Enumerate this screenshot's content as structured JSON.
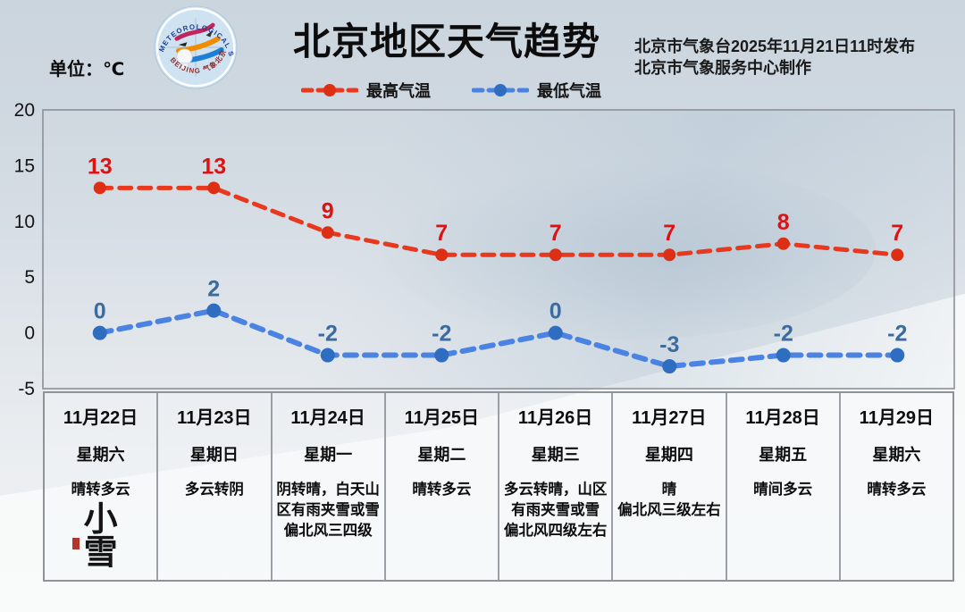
{
  "header": {
    "title": "北京地区天气趋势",
    "issuer_line1": "北京市气象台2025年11月21日11时发布",
    "issuer_line2": "北京市气象服务中心制作",
    "unit_label": "单位：℃",
    "logo": {
      "top_text": "METEOROLOGICAL SERVICE",
      "bottom_text": "BEIJING 气象北京"
    }
  },
  "chart_data": {
    "type": "line",
    "x": [
      "11月22日",
      "11月23日",
      "11月24日",
      "11月25日",
      "11月26日",
      "11月27日",
      "11月28日",
      "11月29日"
    ],
    "series": [
      {
        "name": "最高气温",
        "values": [
          13,
          13,
          9,
          7,
          7,
          7,
          8,
          7
        ],
        "line_color": "#e8391f",
        "dot_color": "#dd2f14",
        "label_color": "#dd1212"
      },
      {
        "name": "最低气温",
        "values": [
          0,
          2,
          -2,
          -2,
          0,
          -3,
          -2,
          -2
        ],
        "line_color": "#4a83e2",
        "dot_color": "#2e6dc0",
        "label_color": "#3c6b9e"
      }
    ],
    "ylim": [
      -5,
      20
    ],
    "yticks": [
      20,
      15,
      10,
      5,
      0,
      -5
    ],
    "grid": false,
    "legend_position": "top-center",
    "title": "北京地区天气趋势",
    "ylabel_unit": "℃",
    "line_style": "dashed"
  },
  "days": [
    {
      "date": "11月22日",
      "weekday": "星期六",
      "weather": [
        "晴转多云"
      ],
      "solar_term": "小雪"
    },
    {
      "date": "11月23日",
      "weekday": "星期日",
      "weather": [
        "多云转阴"
      ]
    },
    {
      "date": "11月24日",
      "weekday": "星期一",
      "weather": [
        "阴转晴，白天山区有雨夹雪或雪",
        "偏北风三四级"
      ]
    },
    {
      "date": "11月25日",
      "weekday": "星期二",
      "weather": [
        "晴转多云"
      ]
    },
    {
      "date": "11月26日",
      "weekday": "星期三",
      "weather": [
        "多云转晴，山区有雨夹雪或雪",
        "偏北风四级左右"
      ]
    },
    {
      "date": "11月27日",
      "weekday": "星期四",
      "weather": [
        "晴",
        "偏北风三级左右"
      ]
    },
    {
      "date": "11月28日",
      "weekday": "星期五",
      "weather": [
        "晴间多云"
      ]
    },
    {
      "date": "11月29日",
      "weekday": "星期六",
      "weather": [
        "晴转多云"
      ]
    }
  ]
}
